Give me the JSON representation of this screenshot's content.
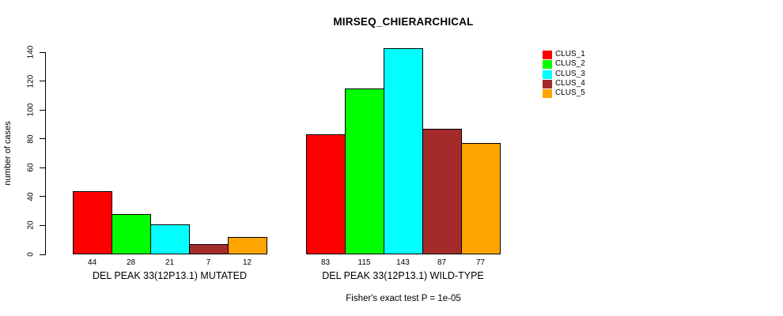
{
  "chart_data": {
    "type": "bar",
    "title": "MIRSEQ_CHIERARCHICAL",
    "ylabel": "number of cases",
    "xlabel": "",
    "ylim": [
      0,
      140
    ],
    "yticks": [
      0,
      20,
      40,
      60,
      80,
      100,
      120,
      140
    ],
    "grid": false,
    "legend_position": "right",
    "caption": "Fisher's exact test P = 1e-05",
    "groups": [
      {
        "label": "DEL PEAK 33(12P13.1) MUTATED",
        "values": [
          44,
          28,
          21,
          7,
          12
        ]
      },
      {
        "label": "DEL PEAK 33(12P13.1) WILD-TYPE",
        "values": [
          83,
          115,
          143,
          87,
          77
        ]
      }
    ],
    "series": [
      {
        "name": "CLUS_1",
        "color": "#FF0000"
      },
      {
        "name": "CLUS_2",
        "color": "#00FF00"
      },
      {
        "name": "CLUS_3",
        "color": "#00FFFF"
      },
      {
        "name": "CLUS_4",
        "color": "#A52A2A"
      },
      {
        "name": "CLUS_5",
        "color": "#FFA500"
      }
    ],
    "value_labels_shown": true,
    "bar_border_color": "#000000"
  }
}
